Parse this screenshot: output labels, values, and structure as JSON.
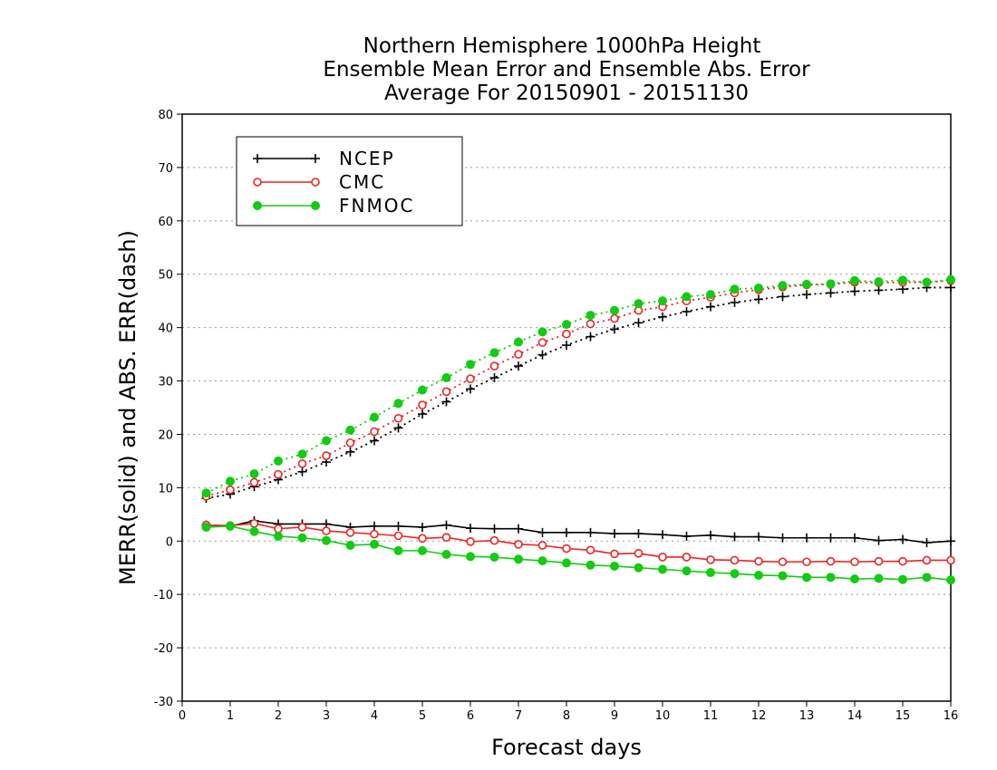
{
  "chart_data": {
    "type": "line",
    "title": [
      "Northern Hemisphere 1000hPa Height",
      "Ensemble Mean Error and Ensemble Abs. Error",
      "Average For 20150901 - 20151130"
    ],
    "xlabel": "Forecast days",
    "ylabel": "MERR(solid) and ABS. ERR(dash)",
    "xlim": [
      0,
      16
    ],
    "ylim": [
      -30,
      80
    ],
    "xticks": [
      0,
      1,
      2,
      3,
      4,
      5,
      6,
      7,
      8,
      9,
      10,
      11,
      12,
      13,
      14,
      15,
      16
    ],
    "yticks": [
      -30,
      -20,
      -10,
      0,
      10,
      20,
      30,
      40,
      50,
      60,
      70,
      80
    ],
    "grid": "horizontal dotted",
    "legend_position": "top-left",
    "x": [
      0.5,
      1,
      1.5,
      2,
      2.5,
      3,
      3.5,
      4,
      4.5,
      5,
      5.5,
      6,
      6.5,
      7,
      7.5,
      8,
      8.5,
      9,
      9.5,
      10,
      10.5,
      11,
      11.5,
      12,
      12.5,
      13,
      13.5,
      14,
      14.5,
      15,
      15.5,
      16
    ],
    "series": [
      {
        "name": "NCEP",
        "color": "#000000",
        "marker": "plus",
        "merr": [
          3.0,
          2.8,
          3.8,
          3.2,
          3.2,
          3.2,
          2.6,
          2.8,
          2.8,
          2.6,
          3.0,
          2.4,
          2.3,
          2.3,
          1.6,
          1.6,
          1.6,
          1.4,
          1.4,
          1.2,
          0.9,
          1.1,
          0.8,
          0.8,
          0.6,
          0.6,
          0.6,
          0.6,
          0.1,
          0.3,
          -0.3,
          0.0
        ],
        "abs_err": [
          8.0,
          8.8,
          10.2,
          11.5,
          13.0,
          14.8,
          16.7,
          18.8,
          21.2,
          23.8,
          26.1,
          28.5,
          30.6,
          32.8,
          34.9,
          36.7,
          38.3,
          39.7,
          40.9,
          42.0,
          43.0,
          43.9,
          44.7,
          45.3,
          45.8,
          46.2,
          46.5,
          46.8,
          47.0,
          47.2,
          47.5,
          47.5
        ]
      },
      {
        "name": "CMC",
        "color": "#ee2222",
        "marker": "open-circle",
        "merr": [
          3.0,
          2.9,
          3.3,
          2.3,
          2.6,
          1.9,
          1.6,
          1.3,
          1.0,
          0.5,
          0.7,
          -0.1,
          0.1,
          -0.6,
          -0.8,
          -1.4,
          -1.7,
          -2.4,
          -2.3,
          -3.0,
          -3.0,
          -3.5,
          -3.6,
          -3.8,
          -3.9,
          -3.9,
          -3.8,
          -3.9,
          -3.8,
          -3.8,
          -3.6,
          -3.6
        ],
        "abs_err": [
          8.4,
          9.6,
          11.0,
          12.5,
          14.5,
          16.0,
          18.4,
          20.5,
          23.0,
          25.5,
          28.0,
          30.4,
          32.8,
          35.0,
          37.2,
          38.8,
          40.7,
          41.7,
          43.2,
          43.9,
          45.0,
          45.7,
          46.5,
          47.1,
          47.6,
          48.0,
          48.1,
          48.5,
          48.4,
          48.5,
          48.5,
          48.8
        ]
      },
      {
        "name": "FNMOC",
        "color": "#11cc11",
        "marker": "filled-circle",
        "merr": [
          2.6,
          2.8,
          1.8,
          0.9,
          0.6,
          0.1,
          -0.8,
          -0.6,
          -1.8,
          -1.8,
          -2.5,
          -2.9,
          -3.0,
          -3.4,
          -3.7,
          -4.1,
          -4.5,
          -4.7,
          -5.0,
          -5.3,
          -5.6,
          -5.9,
          -6.1,
          -6.4,
          -6.5,
          -6.8,
          -6.8,
          -7.1,
          -7.0,
          -7.2,
          -6.8,
          -7.3
        ],
        "abs_err": [
          9.0,
          11.2,
          12.6,
          15.0,
          16.3,
          18.8,
          20.8,
          23.2,
          25.8,
          28.3,
          30.6,
          33.1,
          35.3,
          37.3,
          39.2,
          40.6,
          42.3,
          43.2,
          44.5,
          45.0,
          45.8,
          46.2,
          47.2,
          47.4,
          47.9,
          48.1,
          48.2,
          48.8,
          48.6,
          48.9,
          48.5,
          49.0
        ]
      }
    ]
  }
}
